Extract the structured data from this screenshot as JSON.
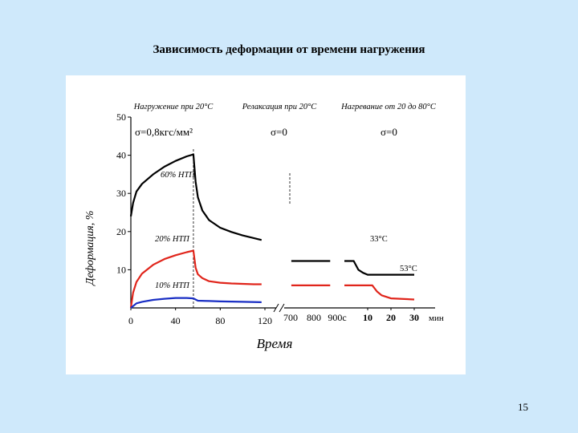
{
  "slide": {
    "title": "Зависимость деформации от времени нагружения",
    "page_number": "15"
  },
  "chart_data": {
    "type": "line",
    "title": "",
    "xlabel": "Время",
    "ylabel": "Деформация, %",
    "ylim": [
      0,
      50
    ],
    "yticks": [
      "10",
      "20",
      "30",
      "40",
      "50"
    ],
    "y_zero_label": "0",
    "xticks_segment1": [
      "0",
      "40",
      "80",
      "120"
    ],
    "xticks_segment2": [
      "700",
      "800",
      "900с"
    ],
    "xticks_segment3": [
      "10",
      "20",
      "30"
    ],
    "x_unit": "мин",
    "stage_labels": [
      "Нагружение при 20°С",
      "Релаксация при 20°С",
      "Нагревание от 20 до 80°С"
    ],
    "stress_labels": [
      "σ=0,8кгс/мм²",
      "σ=0",
      "σ=0"
    ],
    "annotations": [
      "60% НТП",
      "20% НТП",
      "10% НТП",
      "33°С",
      "53°С"
    ],
    "series": [
      {
        "name": "60% НТП",
        "color": "#000000",
        "loading": [
          [
            0,
            24
          ],
          [
            2,
            27.5
          ],
          [
            5,
            30.5
          ],
          [
            10,
            32.5
          ],
          [
            20,
            35
          ],
          [
            30,
            37
          ],
          [
            40,
            38.5
          ],
          [
            50,
            39.7
          ],
          [
            56,
            40.2
          ],
          [
            58,
            33
          ],
          [
            60,
            29
          ],
          [
            64,
            25.5
          ],
          [
            70,
            23
          ],
          [
            80,
            21
          ],
          [
            90,
            19.9
          ],
          [
            100,
            19
          ],
          [
            110,
            18.3
          ],
          [
            117,
            17.8
          ]
        ],
        "relaxation": [
          [
            703,
            12.3
          ],
          [
            760,
            12.3
          ],
          [
            810,
            12.3
          ],
          [
            870,
            12.3
          ]
        ],
        "heating": [
          [
            0,
            12.3
          ],
          [
            2,
            12.3
          ],
          [
            4,
            12.3
          ],
          [
            6,
            10
          ],
          [
            8,
            9.2
          ],
          [
            10,
            8.7
          ],
          [
            15,
            8.7
          ],
          [
            30,
            8.7
          ]
        ]
      },
      {
        "name": "20% НТП",
        "color": "#e0251b",
        "loading": [
          [
            0,
            0
          ],
          [
            2,
            4
          ],
          [
            5,
            6.8
          ],
          [
            10,
            9
          ],
          [
            20,
            11.3
          ],
          [
            30,
            12.8
          ],
          [
            40,
            13.8
          ],
          [
            50,
            14.6
          ],
          [
            56,
            15
          ],
          [
            58,
            10.5
          ],
          [
            60,
            8.8
          ],
          [
            64,
            7.8
          ],
          [
            70,
            7
          ],
          [
            80,
            6.6
          ],
          [
            90,
            6.4
          ],
          [
            100,
            6.3
          ],
          [
            110,
            6.2
          ],
          [
            117,
            6.2
          ]
        ],
        "relaxation": [
          [
            703,
            5.9
          ],
          [
            760,
            5.9
          ],
          [
            810,
            5.9
          ],
          [
            870,
            5.9
          ]
        ],
        "heating": [
          [
            0,
            5.9
          ],
          [
            8,
            5.9
          ],
          [
            10,
            5.9
          ],
          [
            12,
            5.9
          ],
          [
            14,
            4.3
          ],
          [
            16,
            3.3
          ],
          [
            20,
            2.5
          ],
          [
            30,
            2.2
          ]
        ]
      },
      {
        "name": "10% НТП",
        "color": "#1a2fc4",
        "loading": [
          [
            0,
            0
          ],
          [
            5,
            1.2
          ],
          [
            10,
            1.6
          ],
          [
            20,
            2.1
          ],
          [
            30,
            2.4
          ],
          [
            40,
            2.6
          ],
          [
            50,
            2.6
          ],
          [
            56,
            2.5
          ],
          [
            60,
            1.9
          ],
          [
            70,
            1.8
          ],
          [
            80,
            1.7
          ],
          [
            100,
            1.6
          ],
          [
            117,
            1.5
          ]
        ],
        "relaxation": [],
        "heating": []
      }
    ],
    "reference_lines": [
      "loading end at 56 мин",
      "relaxation end at 700"
    ],
    "grid": false,
    "legend": "none"
  }
}
